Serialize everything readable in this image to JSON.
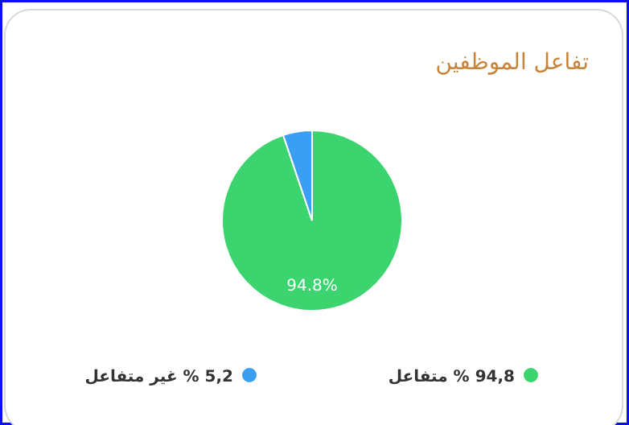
{
  "chart_data": {
    "type": "pie",
    "title": "تفاعل الموظفين",
    "categories": [
      "94,8 % متفاعل",
      "5,2 % غير متفاعل"
    ],
    "values": [
      94.8,
      5.2
    ],
    "colors": [
      "#3cd46e",
      "#3a9ef2"
    ],
    "value_labels": [
      "94.8%",
      null
    ],
    "legend": "bottom"
  }
}
